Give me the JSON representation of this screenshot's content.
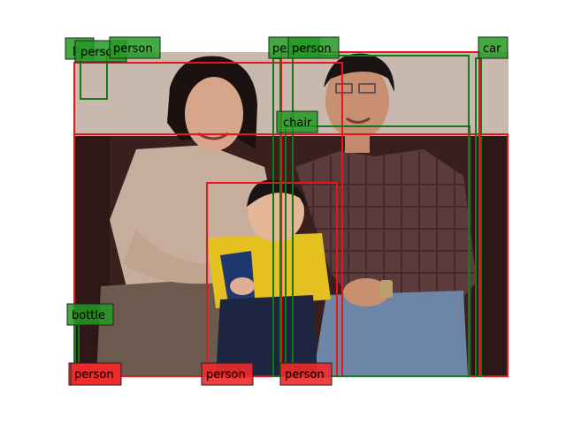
{
  "colors": {
    "ground_truth_box": "#e8161b",
    "prediction_box": "#127a1a",
    "ground_truth_label_bg": "#ee2a2a",
    "prediction_label_bg": "#229a22"
  },
  "ground_truth_labels": [
    {
      "text": "person"
    },
    {
      "text": "person"
    },
    {
      "text": "person"
    },
    {
      "text": "person"
    }
  ],
  "prediction_labels": [
    {
      "text": "p"
    },
    {
      "text": "person"
    },
    {
      "text": "person"
    },
    {
      "text": "person"
    },
    {
      "text": "person"
    },
    {
      "text": "car"
    },
    {
      "text": "chair"
    },
    {
      "text": "bottle"
    }
  ]
}
